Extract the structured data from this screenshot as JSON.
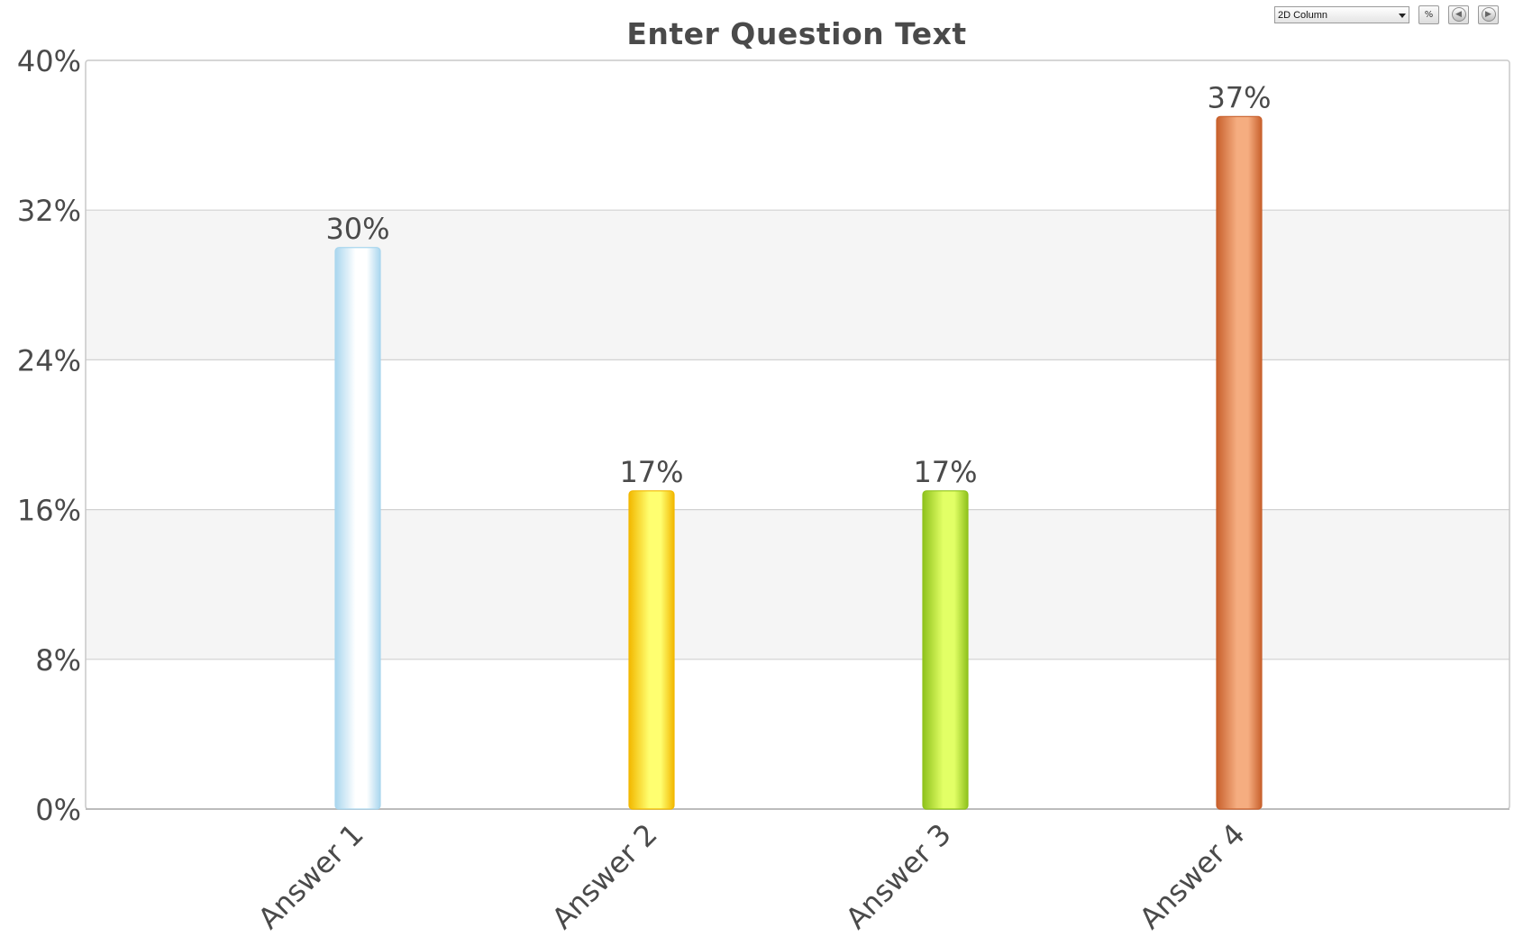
{
  "toolbar": {
    "chart_type_value": "2D Column",
    "percent_label": "%",
    "prev_icon": "arrow-left-circle-icon",
    "next_icon": "arrow-right-circle-icon"
  },
  "chart_data": {
    "type": "bar",
    "title": "Enter Question Text",
    "xlabel": "",
    "ylabel": "",
    "categories": [
      "Answer 1",
      "Answer 2",
      "Answer 3",
      "Answer 4"
    ],
    "values": [
      30,
      17,
      17,
      37
    ],
    "data_labels": [
      "30%",
      "17%",
      "17%",
      "37%"
    ],
    "ylim": [
      0,
      40
    ],
    "y_ticks": [
      0,
      8,
      16,
      24,
      32,
      40
    ],
    "y_tick_labels": [
      "0%",
      "8%",
      "16%",
      "24%",
      "32%",
      "40%"
    ],
    "grid": true,
    "legend": "none",
    "colors": {
      "Answer 1": [
        "#a9d6ee",
        "#ffffff"
      ],
      "Answer 2": [
        "#f2b800",
        "#ffff70"
      ],
      "Answer 3": [
        "#8fc21c",
        "#e2ff66"
      ],
      "Answer 4": [
        "#c8602c",
        "#f5ad80"
      ]
    },
    "axis_color": "#bcbcbc",
    "band_color": "#f5f5f5",
    "text_color": "#4a4a4a"
  }
}
